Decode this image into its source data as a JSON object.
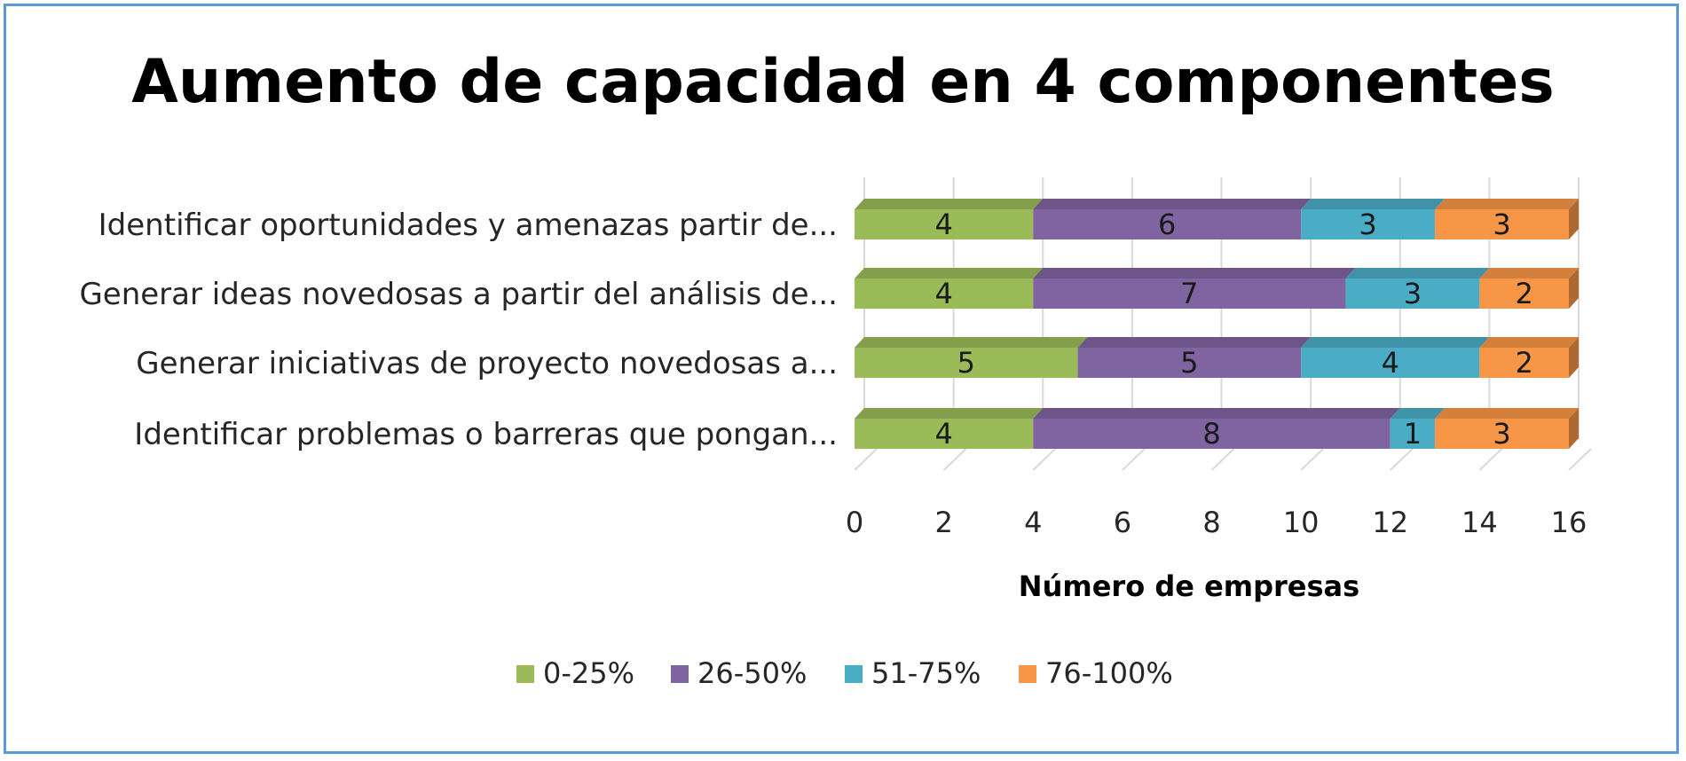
{
  "chart_data": {
    "type": "bar",
    "orientation": "horizontal",
    "stacked": true,
    "title": "Aumento de capacidad en 4 componentes",
    "xlabel": "Número de empresas",
    "ylabel": "",
    "xlim": [
      0,
      16
    ],
    "x_ticks": [
      "0",
      "2",
      "4",
      "6",
      "8",
      "10",
      "12",
      "14",
      "16"
    ],
    "grid": true,
    "legend_position": "bottom",
    "categories": [
      "Identificar oportunidades y amenazas partir de...",
      "Generar ideas novedosas a partir del análisis de...",
      "Generar iniciativas de proyecto novedosas a...",
      "Identificar problemas o barreras que pongan..."
    ],
    "series": [
      {
        "name": "0-25%",
        "color": "#9bbb59",
        "values": [
          4,
          4,
          5,
          4
        ]
      },
      {
        "name": "26-50%",
        "color": "#8064a2",
        "values": [
          6,
          7,
          5,
          8
        ]
      },
      {
        "name": "51-75%",
        "color": "#4bacc6",
        "values": [
          3,
          3,
          4,
          1
        ]
      },
      {
        "name": "76-100%",
        "color": "#f79646",
        "values": [
          3,
          2,
          2,
          3
        ]
      }
    ]
  }
}
